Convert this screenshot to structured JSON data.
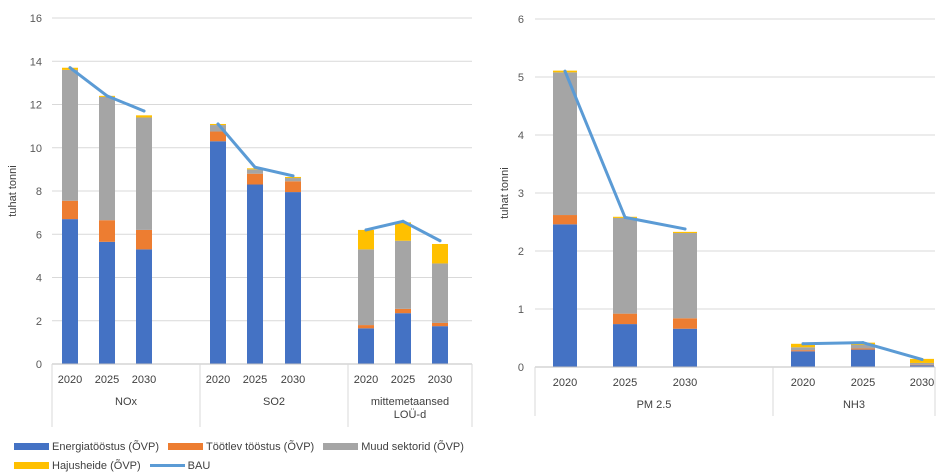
{
  "chart_data": [
    {
      "type": "bar",
      "stacked": true,
      "ylabel": "tuhat tonni",
      "ylim": [
        0,
        16
      ],
      "yticks": [
        0,
        2,
        4,
        6,
        8,
        10,
        12,
        14,
        16
      ],
      "groups": [
        {
          "label": "NOx",
          "categories": [
            "2020",
            "2025",
            "2030"
          ]
        },
        {
          "label": "SO2",
          "categories": [
            "2020",
            "2025",
            "2030"
          ]
        },
        {
          "label": "mittemetaansed LOÜ-d",
          "categories": [
            "2020",
            "2025",
            "2030"
          ]
        }
      ],
      "series": [
        {
          "name": "Energiatööstus (ÕVP)",
          "color": "#4472C4",
          "values": [
            6.7,
            5.65,
            5.3,
            10.3,
            8.3,
            7.95,
            1.65,
            2.35,
            1.75
          ]
        },
        {
          "name": "Töötlev tööstus (ÕVP)",
          "color": "#ED7D31",
          "values": [
            0.85,
            1.0,
            0.9,
            0.45,
            0.5,
            0.5,
            0.15,
            0.2,
            0.15
          ]
        },
        {
          "name": "Muud sektorid (ÕVP)",
          "color": "#A5A5A5",
          "values": [
            6.05,
            5.7,
            5.2,
            0.3,
            0.2,
            0.15,
            3.5,
            3.15,
            2.75
          ]
        },
        {
          "name": "Hajusheide (ÕVP)",
          "color": "#FFC000",
          "values": [
            0.1,
            0.05,
            0.1,
            0.05,
            0.05,
            0.05,
            0.9,
            0.85,
            0.9
          ]
        }
      ],
      "bau": {
        "name": "BAU",
        "color": "#5B9BD5",
        "values": [
          13.7,
          12.4,
          11.7,
          11.1,
          9.1,
          8.7,
          6.2,
          6.6,
          5.7
        ]
      }
    },
    {
      "type": "bar",
      "stacked": true,
      "ylabel": "tuhat tonni",
      "ylim": [
        0,
        6
      ],
      "yticks": [
        0,
        1,
        2,
        3,
        4,
        5,
        6
      ],
      "groups": [
        {
          "label": "PM 2.5",
          "categories": [
            "2020",
            "2025",
            "2030"
          ]
        },
        {
          "label": "NH3",
          "categories": [
            "2020",
            "2025",
            "2030"
          ]
        }
      ],
      "series": [
        {
          "name": "Energiatööstus (ÕVP)",
          "color": "#4472C4",
          "values": [
            2.46,
            0.74,
            0.66,
            0.27,
            0.3,
            0.03
          ]
        },
        {
          "name": "Töötlev tööstus (ÕVP)",
          "color": "#ED7D31",
          "values": [
            0.16,
            0.18,
            0.18,
            0.02,
            0.02,
            0.01
          ]
        },
        {
          "name": "Muud sektorid (ÕVP)",
          "color": "#A5A5A5",
          "values": [
            2.46,
            1.65,
            1.47,
            0.05,
            0.06,
            0.03
          ]
        },
        {
          "name": "Hajusheide (ÕVP)",
          "color": "#FFC000",
          "values": [
            0.03,
            0.02,
            0.02,
            0.06,
            0.04,
            0.07
          ]
        }
      ],
      "bau": {
        "name": "BAU",
        "color": "#5B9BD5",
        "values": [
          5.1,
          2.58,
          2.38,
          0.4,
          0.42,
          0.13
        ]
      }
    }
  ],
  "legend": [
    {
      "name": "Energiatööstus (ÕVP)",
      "color": "#4472C4",
      "kind": "bar"
    },
    {
      "name": "Töötlev tööstus (ÕVP)",
      "color": "#ED7D31",
      "kind": "bar"
    },
    {
      "name": "Muud sektorid (ÕVP)",
      "color": "#A5A5A5",
      "kind": "bar"
    },
    {
      "name": "Hajusheide (ÕVP)",
      "color": "#FFC000",
      "kind": "bar"
    },
    {
      "name": "BAU",
      "color": "#5B9BD5",
      "kind": "line"
    }
  ]
}
